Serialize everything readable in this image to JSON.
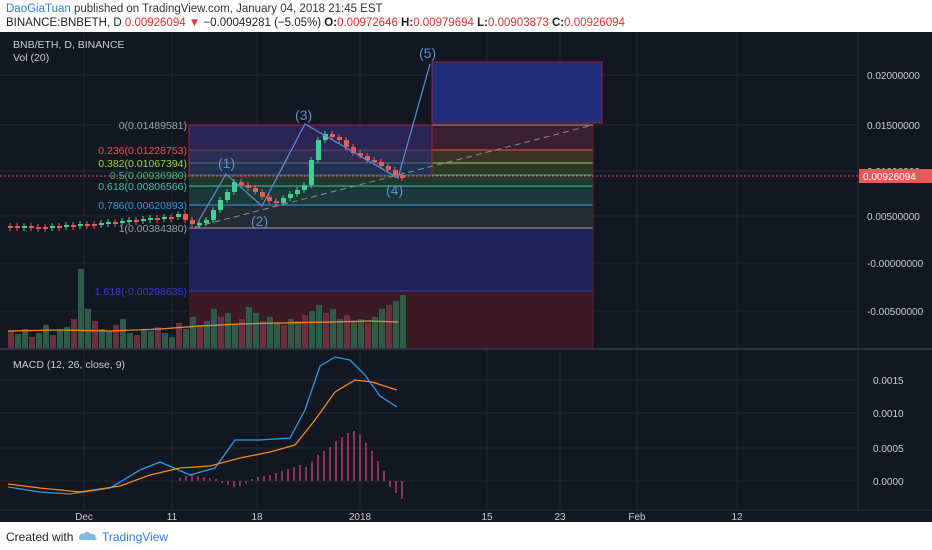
{
  "header": {
    "author": "DaoGiaTuan",
    "published_text": " published on TradingView.com, January 04, 2018 21:45 EST",
    "symbol": "BINANCE:BNBETH, D",
    "last": "0.00926094",
    "change_arrow": "▼",
    "change": "−0.00049281 (−5.05%)",
    "o_label": "O:",
    "o": "0.00972646",
    "h_label": "H:",
    "h": "0.00979694",
    "l_label": "L:",
    "l": "0.00903873",
    "c_label": "C:",
    "c": "0.00926094"
  },
  "pane_titles": {
    "main": "BNB/ETH, D, BINANCE",
    "volume": "Vol (20)",
    "macd": "MACD (12, 26, close, 9)"
  },
  "price_axis": [
    "0.02000000",
    "0.01500000",
    "0.01000000",
    "0.00500000",
    "-0.00000000",
    "-0.00500000"
  ],
  "last_price_label": "0.00926094",
  "macd_axis": [
    "0.0015",
    "0.0010",
    "0.0005",
    "0.0000"
  ],
  "time_axis": [
    "Dec",
    "11",
    "18",
    "2018",
    "15",
    "23",
    "Feb",
    "12"
  ],
  "fib_levels": [
    {
      "label": "0(0.01489581)",
      "color": "#9aa0ab"
    },
    {
      "label": "0.236(0.01228753)",
      "color": "#f05050"
    },
    {
      "label": "0.382(0.01067394)",
      "color": "#9ad14a"
    },
    {
      "label": "0.5(0.00936980)",
      "color": "#3cb878"
    },
    {
      "label": "0.618(0.00806566)",
      "color": "#3ec3a0"
    },
    {
      "label": "0.786(0.00620893)",
      "color": "#2d9be0"
    },
    {
      "label": "1(0.00384380)",
      "color": "#9aa0ab"
    },
    {
      "label": "1.618(-0.00298635)",
      "color": "#3a3ad8"
    }
  ],
  "wave_labels": [
    "(1)",
    "(2)",
    "(3)",
    "(4)",
    "(5)"
  ],
  "footer": {
    "created": "Created with",
    "brand": "TradingView"
  },
  "colors": {
    "up": "#3fd18f",
    "down": "#e85a5a",
    "macd_line": "#2d9be0",
    "signal_line": "#f08a24",
    "hist": "#e0408a",
    "wave": "#5b8fd6",
    "background": "#131722"
  }
}
